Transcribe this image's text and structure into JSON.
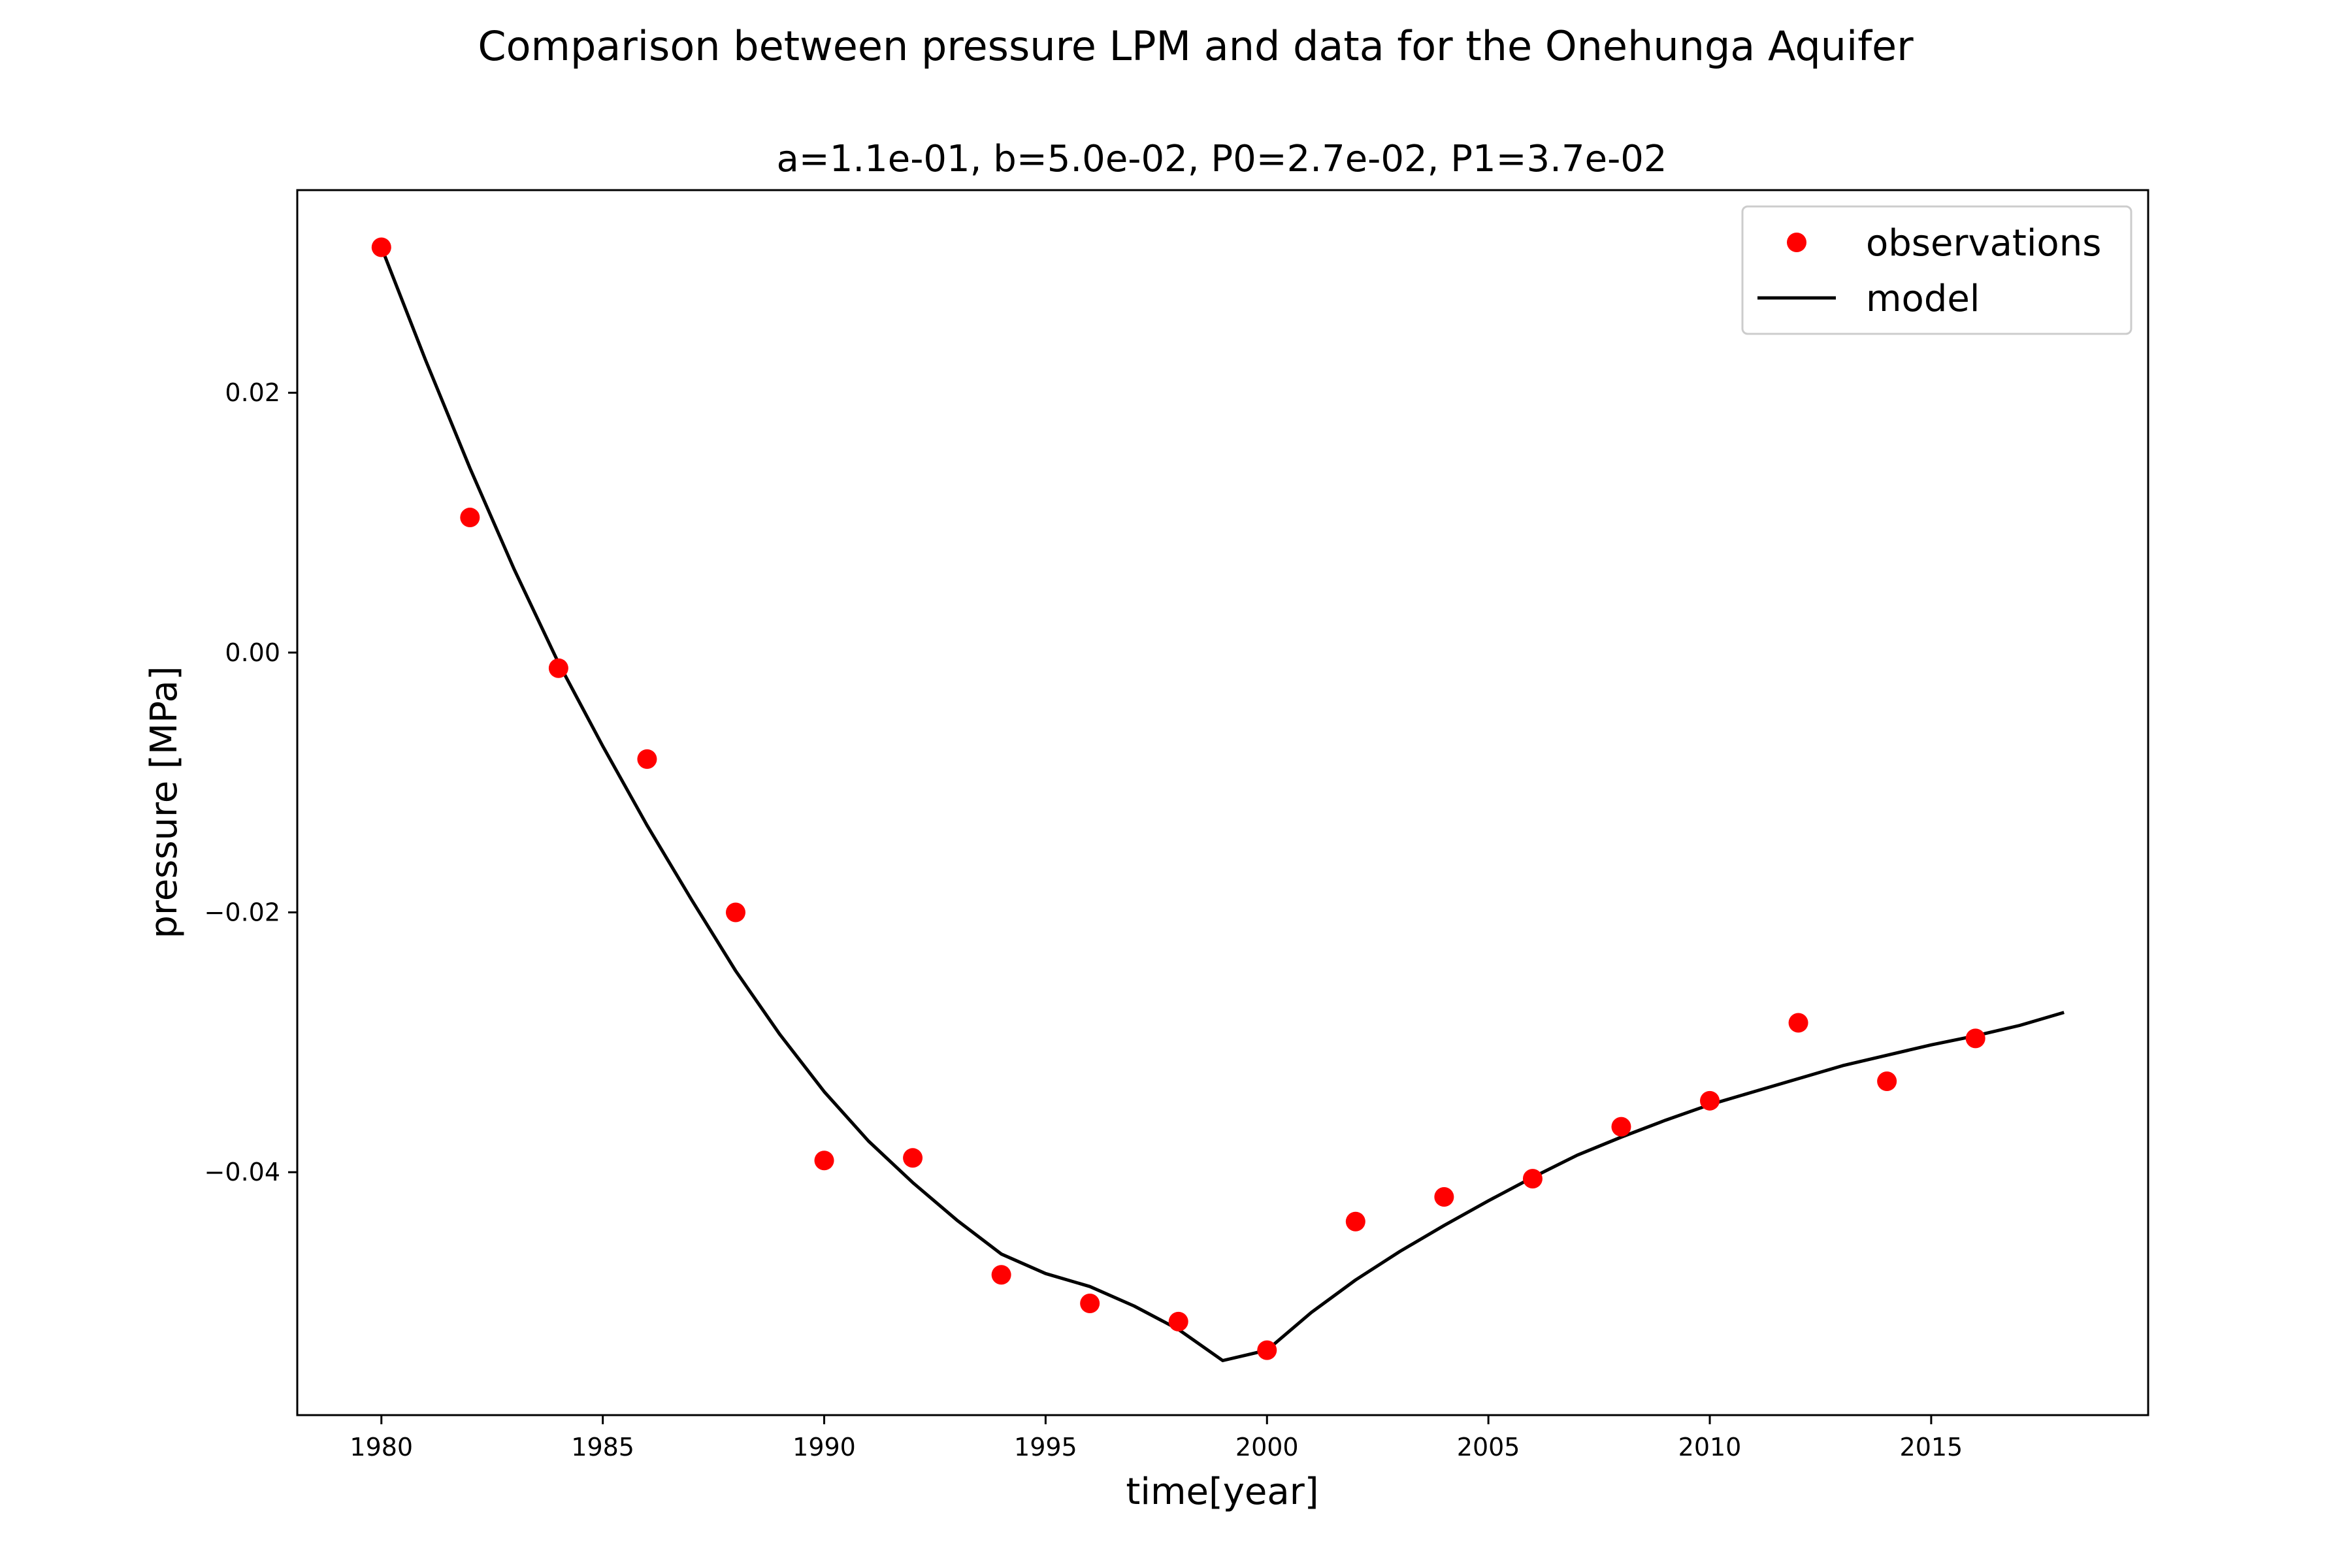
{
  "chart_data": {
    "type": "line",
    "title": "Comparison between pressure LPM and data for the Onehunga Aquifer",
    "subtitle": "a=1.1e-01,   b=5.0e-02,   P0=2.7e-02,  P1=3.7e-02",
    "xlabel": "time[year]",
    "ylabel": "pressure [MPa]",
    "xlim": [
      1978.1,
      2019.9
    ],
    "ylim": [
      -0.0587,
      0.0356
    ],
    "xticks": [
      1980,
      1985,
      1990,
      1995,
      2000,
      2005,
      2010,
      2015
    ],
    "yticks": [
      0.02,
      0.0,
      -0.02,
      -0.04
    ],
    "ytick_labels": [
      "0.02",
      "0.00",
      "−0.02",
      "−0.04"
    ],
    "grid": false,
    "legend_position": "top-right",
    "series": [
      {
        "name": "observations",
        "kind": "scatter",
        "color": "#ff0000",
        "x": [
          1980,
          1982,
          1984,
          1986,
          1988,
          1990,
          1992,
          1994,
          1996,
          1998,
          2000,
          2002,
          2004,
          2006,
          2008,
          2010,
          2012,
          2014,
          2016
        ],
        "y": [
          0.0312,
          0.0104,
          -0.0012,
          -0.0082,
          -0.02,
          -0.0391,
          -0.0389,
          -0.0479,
          -0.0501,
          -0.0515,
          -0.0537,
          -0.0438,
          -0.0419,
          -0.0405,
          -0.0365,
          -0.0345,
          -0.0285,
          -0.033,
          -0.0297
        ]
      },
      {
        "name": "model",
        "kind": "line",
        "color": "#000000",
        "x": [
          1980,
          1981,
          1982,
          1983,
          1984,
          1985,
          1986,
          1987,
          1988,
          1989,
          1990,
          1991,
          1992,
          1993,
          1994,
          1995,
          1996,
          1997,
          1998,
          1999,
          2000,
          2001,
          2002,
          2003,
          2004,
          2005,
          2006,
          2007,
          2008,
          2009,
          2010,
          2011,
          2012,
          2013,
          2014,
          2015,
          2016,
          2017,
          2018
        ],
        "y": [
          0.0312,
          0.0225,
          0.0142,
          0.0064,
          -0.0008,
          -0.0072,
          -0.0133,
          -0.019,
          -0.0245,
          -0.0294,
          -0.0338,
          -0.0376,
          -0.0408,
          -0.0437,
          -0.0463,
          -0.0478,
          -0.0488,
          -0.0503,
          -0.0521,
          -0.0545,
          -0.0537,
          -0.0508,
          -0.0483,
          -0.0461,
          -0.0441,
          -0.0422,
          -0.0404,
          -0.0387,
          -0.0373,
          -0.036,
          -0.0348,
          -0.0338,
          -0.0328,
          -0.0318,
          -0.031,
          -0.0302,
          -0.0295,
          -0.0287,
          -0.0277
        ]
      }
    ]
  }
}
